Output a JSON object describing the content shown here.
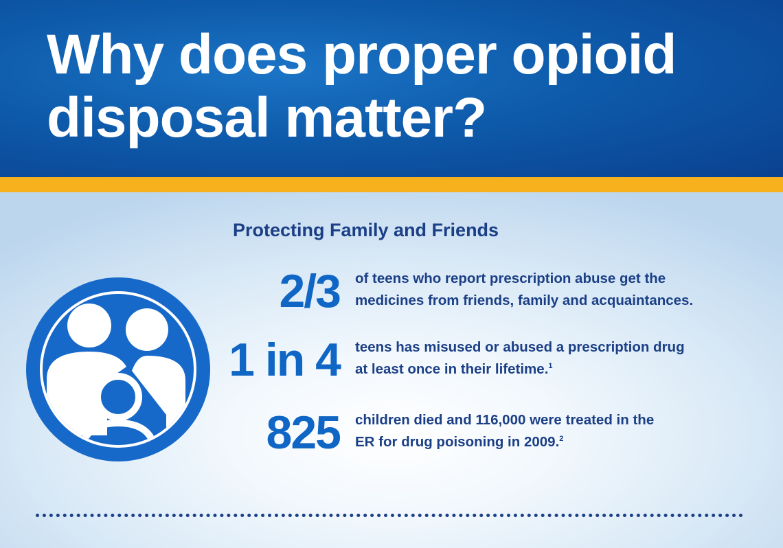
{
  "header": {
    "title": "Why does proper opioid disposal matter?"
  },
  "section": {
    "heading": "Protecting Family and Friends"
  },
  "stats": [
    {
      "number": "2/3",
      "line1": "of teens who report prescription abuse get the",
      "line2": "medicines from friends, family and acquaintances.",
      "footnote": ""
    },
    {
      "number": "1 in 4",
      "line1": "teens has misused or abused a prescription drug",
      "line2": "at least once in their lifetime.",
      "footnote": "1"
    },
    {
      "number": "825",
      "line1": "children died and 116,000 were treated in the",
      "line2": "ER for drug poisoning in 2009.",
      "footnote": "2"
    }
  ],
  "icons": {
    "family": "family-icon"
  },
  "colors": {
    "header_blue": "#0e5aaa",
    "accent_gold": "#f7b11d",
    "stat_blue": "#1066c4",
    "text_navy": "#1b3f86",
    "icon_blue": "#1769c9"
  }
}
